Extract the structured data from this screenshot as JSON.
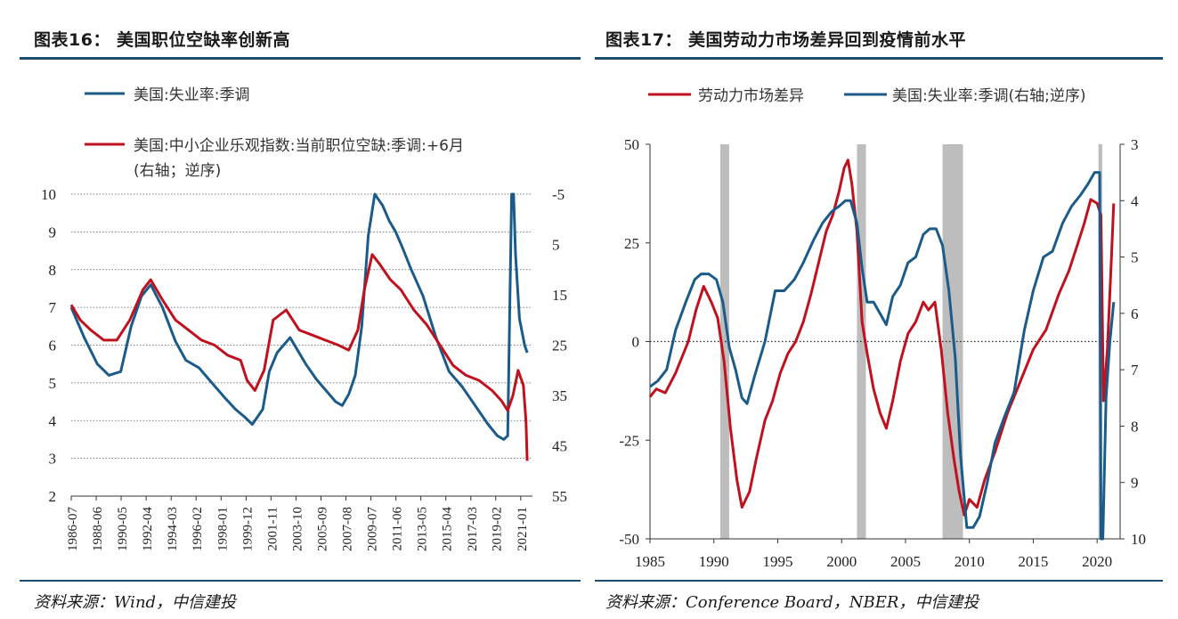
{
  "left": {
    "title": "图表16： 美国职位空缺率创新高",
    "source": "资料来源：Wind，中信建投",
    "chart_data": {
      "type": "line",
      "series": [
        {
          "name": "美国:失业率:季调",
          "color": "#1b5b8a",
          "axis": "left",
          "x": [
            1986.5,
            1987.5,
            1988.5,
            1989.4,
            1990.3,
            1991.1,
            1991.9,
            1992.6,
            1993.5,
            1994.5,
            1995.3,
            1996.3,
            1997.3,
            1998.3,
            1999.1,
            1999.8,
            2000.4,
            2001.2,
            2001.7,
            2002.3,
            2003.3,
            2004.5,
            2005.3,
            2006.3,
            2006.8,
            2007.3,
            2007.8,
            2008.3,
            2008.8,
            2009.3,
            2009.8,
            2010.4,
            2010.9,
            2011.4,
            2011.9,
            2012.6,
            2013.5,
            2014.5,
            2015.5,
            2016.5,
            2017.5,
            2018.5,
            2019.2,
            2019.7,
            2020.0,
            2020.3,
            2020.45,
            2020.6,
            2020.9,
            2021.3,
            2021.5
          ],
          "values": [
            7.0,
            6.2,
            5.5,
            5.2,
            5.3,
            6.5,
            7.3,
            7.6,
            7.0,
            6.1,
            5.6,
            5.4,
            5.0,
            4.6,
            4.3,
            4.1,
            3.9,
            4.3,
            5.3,
            5.8,
            6.2,
            5.5,
            5.1,
            4.7,
            4.5,
            4.4,
            4.7,
            5.2,
            6.5,
            8.9,
            10.0,
            9.7,
            9.3,
            9.0,
            8.6,
            8.0,
            7.3,
            6.2,
            5.3,
            4.9,
            4.4,
            3.9,
            3.6,
            3.5,
            3.6,
            14.7,
            11.1,
            8.4,
            6.7,
            6.0,
            5.8
          ]
        },
        {
          "name": "美国:中小企业乐观指数:当前职位空缺:季调:+6月(右轴；逆序)",
          "color": "#c0111f",
          "axis": "right",
          "x": [
            1986.5,
            1987.2,
            1988.0,
            1989.0,
            1990.0,
            1991.0,
            1992.0,
            1992.6,
            1993.5,
            1994.5,
            1995.5,
            1996.5,
            1997.5,
            1998.5,
            1999.5,
            2000.0,
            2000.6,
            2001.3,
            2002.0,
            2003.0,
            2004.0,
            2005.0,
            2006.0,
            2007.0,
            2007.8,
            2008.5,
            2009.0,
            2009.6,
            2010.2,
            2011.0,
            2011.8,
            2012.8,
            2013.8,
            2014.8,
            2015.8,
            2016.8,
            2017.8,
            2018.8,
            2019.5,
            2020.0,
            2020.4,
            2020.8,
            2021.2,
            2021.4,
            2021.5
          ],
          "values": [
            17,
            20,
            22,
            24,
            24,
            20,
            14,
            12,
            16,
            20,
            22,
            24,
            25,
            27,
            28,
            32,
            34,
            30,
            20,
            18,
            22,
            23,
            24,
            25,
            26,
            22,
            14,
            7,
            9,
            12,
            14,
            18,
            21,
            25,
            29,
            31,
            32,
            34,
            36,
            38,
            35,
            30,
            33,
            40,
            48
          ]
        }
      ],
      "x_tick_labels": [
        "1986-07",
        "1988-06",
        "1990-05",
        "1992-04",
        "1994-03",
        "1996-02",
        "1998-01",
        "1999-12",
        "2001-11",
        "2003-10",
        "2005-09",
        "2007-08",
        "2009-07",
        "2011-06",
        "2013-05",
        "2015-04",
        "2017-03",
        "2019-02",
        "2021-01"
      ],
      "x_tick_values": [
        1986.5,
        1988.42,
        1990.33,
        1992.25,
        1994.17,
        1996.08,
        1998.0,
        1999.92,
        2001.83,
        2003.75,
        2005.67,
        2007.58,
        2009.5,
        2011.42,
        2013.33,
        2015.25,
        2017.17,
        2019.08,
        2021.0
      ],
      "xlim": [
        1986.5,
        2021.9
      ],
      "ylim_left": [
        2,
        10
      ],
      "ylim_right": [
        -5,
        55
      ],
      "yticks_left": [
        "2",
        "3",
        "4",
        "5",
        "6",
        "7",
        "8",
        "9",
        "10"
      ],
      "yticks_right": [
        "-5",
        "5",
        "15",
        "25",
        "35",
        "45",
        "55"
      ],
      "right_axis_inverted": true,
      "legend": [
        {
          "text": "美国:失业率:季调"
        },
        {
          "text": "美国:中小企业乐观指数:当前职位空缺:季调:+6月",
          "text2": "(右轴；逆序)"
        }
      ],
      "grid": "horizontal-dotted"
    }
  },
  "right": {
    "title": "图表17： 美国劳动力市场差异回到疫情前水平",
    "source": "资料来源：Conference Board，NBER，中信建投",
    "chart_data": {
      "type": "line",
      "series": [
        {
          "name": "劳动力市场差异",
          "color": "#c0111f",
          "axis": "left",
          "x": [
            1985.0,
            1985.5,
            1986.2,
            1987.0,
            1988.0,
            1988.6,
            1989.2,
            1989.8,
            1990.3,
            1990.8,
            1991.3,
            1991.8,
            1992.2,
            1992.8,
            1993.3,
            1994.0,
            1994.6,
            1995.2,
            1995.8,
            1996.4,
            1997.0,
            1997.6,
            1998.2,
            1998.8,
            1999.3,
            1999.8,
            2000.2,
            2000.5,
            2000.8,
            2001.2,
            2001.6,
            2002.0,
            2002.5,
            2003.0,
            2003.5,
            2004.0,
            2004.6,
            2005.2,
            2005.8,
            2006.4,
            2006.8,
            2007.3,
            2007.8,
            2008.3,
            2008.8,
            2009.2,
            2009.6,
            2010.0,
            2010.6,
            2011.2,
            2012.0,
            2013.0,
            2014.0,
            2015.0,
            2016.0,
            2017.0,
            2017.8,
            2018.5,
            2019.0,
            2019.5,
            2020.0,
            2020.3,
            2020.5,
            2020.8,
            2021.1,
            2021.3
          ],
          "values": [
            -14,
            -12,
            -13,
            -8,
            0,
            8,
            14,
            10,
            6,
            -5,
            -22,
            -35,
            -42,
            -38,
            -30,
            -20,
            -15,
            -8,
            -3,
            0,
            5,
            12,
            20,
            28,
            32,
            38,
            44,
            46,
            40,
            28,
            5,
            -3,
            -12,
            -18,
            -22,
            -15,
            -5,
            2,
            5,
            10,
            8,
            10,
            -2,
            -18,
            -30,
            -38,
            -44,
            -40,
            -42,
            -35,
            -28,
            -18,
            -10,
            -2,
            3,
            12,
            18,
            25,
            30,
            36,
            35,
            32,
            -15,
            -2,
            20,
            35
          ]
        },
        {
          "name": "美国:失业率:季调(右轴;逆序)",
          "color": "#1b5b8a",
          "axis": "right",
          "x": [
            1985.0,
            1985.6,
            1986.3,
            1987.0,
            1987.8,
            1988.5,
            1989.0,
            1989.6,
            1990.2,
            1990.7,
            1991.2,
            1991.7,
            1992.2,
            1992.6,
            1993.2,
            1994.0,
            1994.8,
            1995.5,
            1996.3,
            1997.0,
            1997.8,
            1998.5,
            1999.2,
            1999.8,
            2000.3,
            2000.7,
            2001.2,
            2001.6,
            2002.0,
            2002.5,
            2003.0,
            2003.5,
            2004.0,
            2004.6,
            2005.2,
            2005.8,
            2006.4,
            2006.9,
            2007.4,
            2007.9,
            2008.4,
            2008.9,
            2009.3,
            2009.8,
            2010.3,
            2010.8,
            2011.4,
            2012.0,
            2012.8,
            2013.5,
            2014.3,
            2015.0,
            2015.8,
            2016.5,
            2017.3,
            2018.0,
            2018.7,
            2019.3,
            2019.8,
            2020.2,
            2020.3,
            2020.45,
            2020.7,
            2021.0,
            2021.3
          ],
          "values": [
            7.3,
            7.2,
            7.0,
            6.3,
            5.8,
            5.4,
            5.3,
            5.3,
            5.4,
            5.8,
            6.6,
            7.0,
            7.5,
            7.6,
            7.1,
            6.5,
            5.6,
            5.6,
            5.4,
            5.1,
            4.7,
            4.4,
            4.2,
            4.1,
            4.0,
            4.0,
            4.4,
            5.2,
            5.8,
            5.8,
            6.0,
            6.2,
            5.7,
            5.5,
            5.1,
            5.0,
            4.6,
            4.5,
            4.5,
            4.8,
            5.6,
            6.8,
            8.5,
            9.8,
            9.8,
            9.6,
            9.0,
            8.3,
            7.8,
            7.4,
            6.3,
            5.6,
            5.0,
            4.9,
            4.4,
            4.1,
            3.9,
            3.7,
            3.5,
            3.5,
            14.7,
            10.2,
            7.5,
            6.5,
            5.8
          ]
        }
      ],
      "x_tick_labels": [
        "1985",
        "1990",
        "1995",
        "2000",
        "2005",
        "2010",
        "2015",
        "2020"
      ],
      "x_tick_values": [
        1985,
        1990,
        1995,
        2000,
        2005,
        2010,
        2015,
        2020
      ],
      "xlim": [
        1985,
        2021.8
      ],
      "ylim_left": [
        -50,
        50
      ],
      "ylim_right": [
        3,
        10
      ],
      "yticks_left": [
        "50",
        "25",
        "0",
        "-25",
        "-50"
      ],
      "yticks_right": [
        "3",
        "4",
        "5",
        "6",
        "7",
        "8",
        "9",
        "10"
      ],
      "right_axis_inverted": true,
      "recessions": [
        [
          1990.5,
          1991.2
        ],
        [
          2001.2,
          2001.9
        ],
        [
          2007.9,
          2009.5
        ],
        [
          2020.1,
          2020.4
        ]
      ],
      "zero_line": true,
      "legend": [
        {
          "text": "劳动力市场差异"
        },
        {
          "text": "美国:失业率:季调(右轴;逆序)"
        }
      ]
    }
  }
}
